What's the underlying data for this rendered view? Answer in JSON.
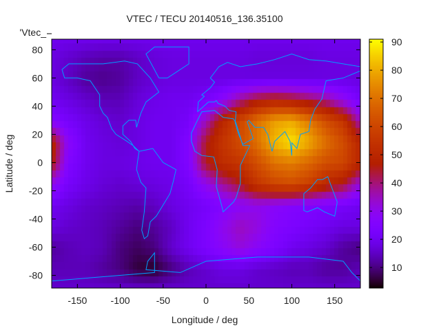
{
  "chart_data": {
    "type": "heatmap",
    "title": "VTEC / TECU 20140516_136.35100",
    "xlabel": "Longitude / deg",
    "ylabel": "Latitude / deg",
    "legend_key": "'Vtec_",
    "legend_placement": "top-left",
    "xlim": [
      -180,
      180
    ],
    "ylim": [
      -89,
      87.5
    ],
    "xticks": [
      -150,
      -100,
      -50,
      0,
      50,
      100,
      150
    ],
    "yticks": [
      -80,
      -60,
      -40,
      -20,
      0,
      20,
      40,
      60,
      80
    ],
    "colorbar": {
      "range": [
        2.7,
        91
      ],
      "ticks": [
        10,
        20,
        30,
        40,
        50,
        60,
        70,
        80,
        90
      ],
      "palette": "black-blue-purple-red-orange-yellow"
    },
    "coastline_color": "#00a0ff",
    "grid_lons": [
      -180,
      -160,
      -140,
      -120,
      -100,
      -80,
      -60,
      -40,
      -20,
      0,
      20,
      40,
      60,
      80,
      100,
      120,
      140,
      160,
      180
    ],
    "grid_lats": [
      90,
      75,
      60,
      45,
      30,
      15,
      0,
      -15,
      -30,
      -45,
      -60,
      -75,
      -90
    ],
    "values": [
      [
        20,
        20,
        20,
        20,
        20,
        20,
        20,
        20,
        20,
        20,
        20,
        20,
        20,
        20,
        20,
        20,
        20,
        20,
        20
      ],
      [
        18,
        16,
        14,
        13,
        13,
        15,
        17,
        18,
        18,
        18,
        18,
        18,
        17,
        17,
        17,
        17,
        18,
        18,
        18
      ],
      [
        18,
        15,
        12,
        11,
        12,
        15,
        17,
        18,
        18,
        18,
        18,
        18,
        18,
        18,
        18,
        18,
        18,
        18,
        18
      ],
      [
        20,
        18,
        16,
        14,
        14,
        17,
        19,
        20,
        20,
        22,
        28,
        38,
        45,
        48,
        46,
        42,
        38,
        30,
        22
      ],
      [
        26,
        22,
        19,
        17,
        16,
        18,
        20,
        20,
        22,
        35,
        50,
        60,
        70,
        78,
        80,
        72,
        62,
        55,
        35
      ],
      [
        50,
        28,
        20,
        18,
        17,
        18,
        20,
        20,
        25,
        45,
        55,
        62,
        70,
        82,
        88,
        80,
        70,
        62,
        50
      ],
      [
        48,
        25,
        20,
        18,
        18,
        19,
        20,
        20,
        25,
        45,
        52,
        55,
        62,
        70,
        72,
        68,
        62,
        60,
        50
      ],
      [
        30,
        22,
        19,
        17,
        16,
        17,
        18,
        19,
        22,
        30,
        38,
        45,
        55,
        60,
        62,
        58,
        50,
        45,
        32
      ],
      [
        20,
        18,
        16,
        15,
        14,
        13,
        15,
        18,
        20,
        22,
        25,
        28,
        30,
        28,
        26,
        25,
        24,
        22,
        20
      ],
      [
        18,
        16,
        15,
        14,
        12,
        10,
        12,
        15,
        20,
        24,
        30,
        35,
        32,
        26,
        24,
        22,
        20,
        18,
        18
      ],
      [
        12,
        14,
        15,
        14,
        10,
        8,
        10,
        16,
        20,
        24,
        28,
        32,
        28,
        24,
        20,
        18,
        16,
        12,
        10
      ],
      [
        14,
        14,
        14,
        12,
        10,
        6,
        5,
        10,
        14,
        16,
        18,
        18,
        16,
        15,
        14,
        14,
        12,
        12,
        14
      ],
      [
        16,
        16,
        16,
        16,
        16,
        16,
        16,
        16,
        16,
        16,
        16,
        16,
        16,
        16,
        16,
        16,
        16,
        16,
        16
      ]
    ]
  }
}
